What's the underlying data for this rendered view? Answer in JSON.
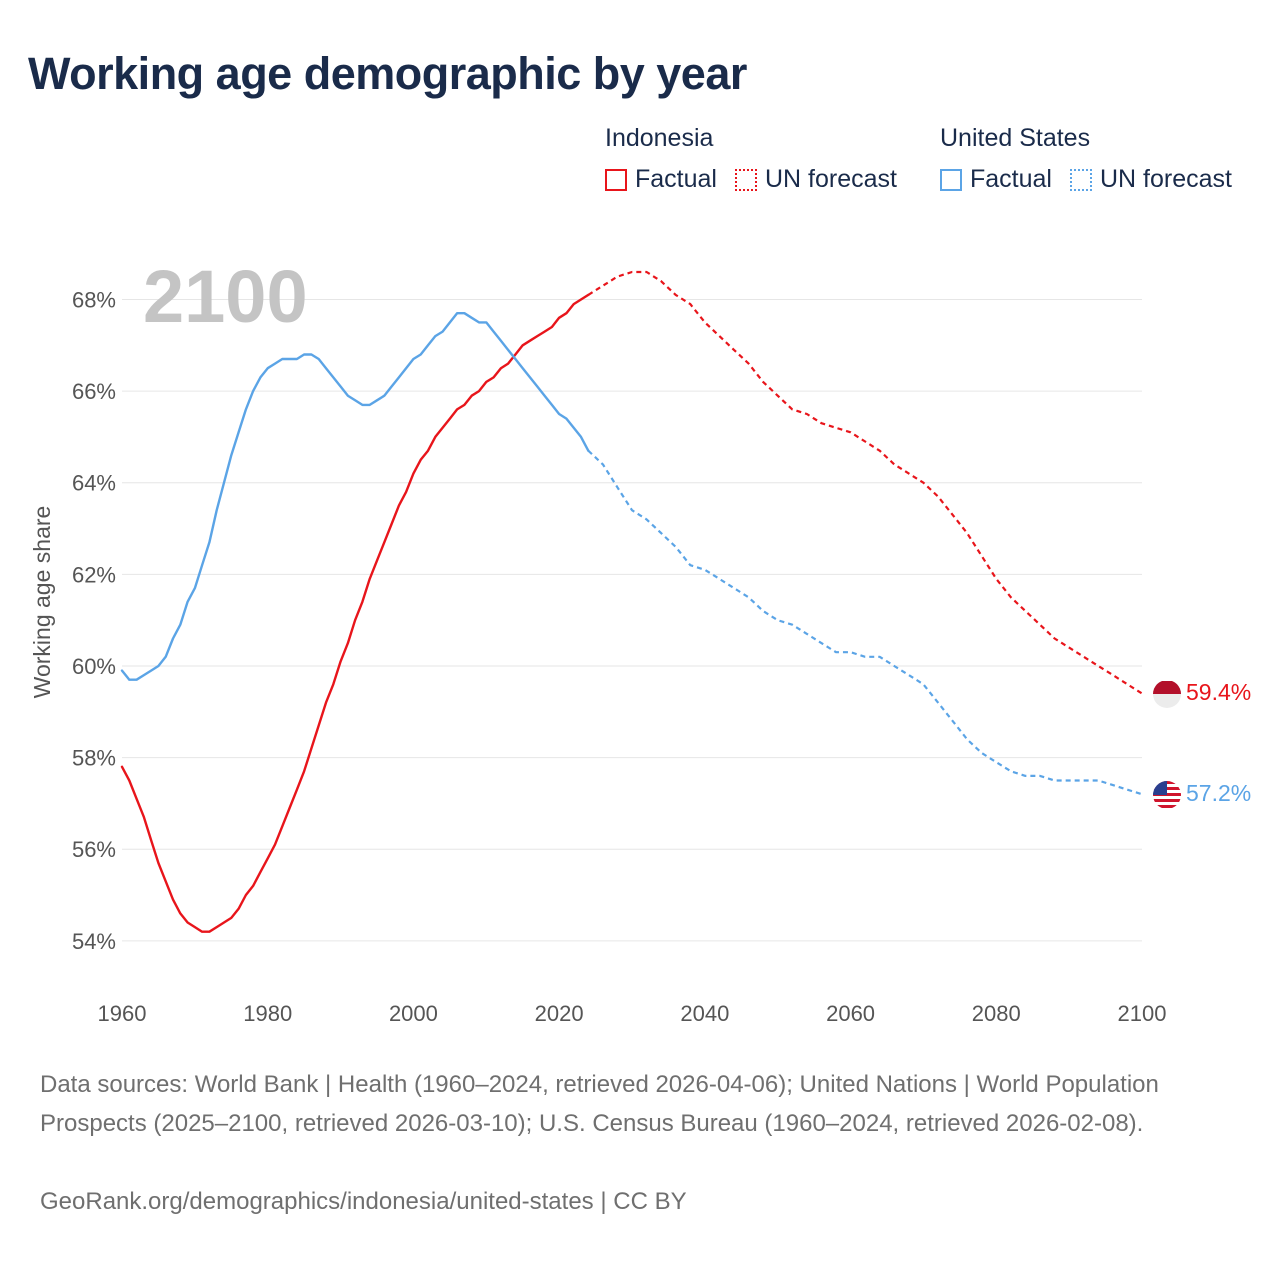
{
  "title": "Working age demographic by year",
  "legend": {
    "groups": [
      {
        "country": "Indonesia",
        "color": "#e8151b",
        "factual_label": "Factual",
        "forecast_label": "UN forecast"
      },
      {
        "country": "United States",
        "color": "#5ba4e6",
        "factual_label": "Factual",
        "forecast_label": "UN forecast"
      }
    ]
  },
  "year_watermark": "2100",
  "footer": {
    "sources": "Data sources: World Bank | Health (1960–2024, retrieved 2026-04-06); United Nations | World Population Prospects (2025–2100, retrieved 2026-03-10); U.S. Census Bureau (1960–2024, retrieved 2026-02-08).",
    "credit": "GeoRank.org/demographics/indonesia/united-states | CC BY"
  },
  "chart_data": {
    "type": "line",
    "title": "Working age demographic by year",
    "xlabel": "",
    "ylabel": "Working age share",
    "xlim": [
      1960,
      2100
    ],
    "ylim": [
      53.8,
      68.6
    ],
    "x_ticks": [
      1960,
      1980,
      2000,
      2020,
      2040,
      2060,
      2080,
      2100
    ],
    "y_ticks": [
      54,
      56,
      58,
      60,
      62,
      64,
      66,
      68
    ],
    "y_tick_labels": [
      "54%",
      "56%",
      "58%",
      "60%",
      "62%",
      "64%",
      "66%",
      "68%"
    ],
    "grid": true,
    "series": [
      {
        "name": "Indonesia",
        "color": "#e8151b",
        "end_label": "59.4%",
        "end_icon": "indonesia-flag-icon",
        "factual": {
          "x": [
            1960,
            1961,
            1962,
            1963,
            1964,
            1965,
            1966,
            1967,
            1968,
            1969,
            1970,
            1971,
            1972,
            1973,
            1974,
            1975,
            1976,
            1977,
            1978,
            1979,
            1980,
            1981,
            1982,
            1983,
            1984,
            1985,
            1986,
            1987,
            1988,
            1989,
            1990,
            1991,
            1992,
            1993,
            1994,
            1995,
            1996,
            1997,
            1998,
            1999,
            2000,
            2001,
            2002,
            2003,
            2004,
            2005,
            2006,
            2007,
            2008,
            2009,
            2010,
            2011,
            2012,
            2013,
            2014,
            2015,
            2016,
            2017,
            2018,
            2019,
            2020,
            2021,
            2022,
            2023,
            2024
          ],
          "y": [
            57.8,
            57.5,
            57.1,
            56.7,
            56.2,
            55.7,
            55.3,
            54.9,
            54.6,
            54.4,
            54.3,
            54.2,
            54.2,
            54.3,
            54.4,
            54.5,
            54.7,
            55.0,
            55.2,
            55.5,
            55.8,
            56.1,
            56.5,
            56.9,
            57.3,
            57.7,
            58.2,
            58.7,
            59.2,
            59.6,
            60.1,
            60.5,
            61.0,
            61.4,
            61.9,
            62.3,
            62.7,
            63.1,
            63.5,
            63.8,
            64.2,
            64.5,
            64.7,
            65.0,
            65.2,
            65.4,
            65.6,
            65.7,
            65.9,
            66.0,
            66.2,
            66.3,
            66.5,
            66.6,
            66.8,
            67.0,
            67.1,
            67.2,
            67.3,
            67.4,
            67.6,
            67.7,
            67.9,
            68.0,
            68.1
          ]
        },
        "forecast": {
          "x": [
            2024,
            2026,
            2028,
            2030,
            2032,
            2034,
            2036,
            2038,
            2040,
            2042,
            2044,
            2046,
            2048,
            2050,
            2052,
            2054,
            2056,
            2058,
            2060,
            2062,
            2064,
            2066,
            2068,
            2070,
            2072,
            2074,
            2076,
            2078,
            2080,
            2082,
            2084,
            2086,
            2088,
            2090,
            2092,
            2094,
            2096,
            2098,
            2100
          ],
          "y": [
            68.1,
            68.3,
            68.5,
            68.6,
            68.6,
            68.4,
            68.1,
            67.9,
            67.5,
            67.2,
            66.9,
            66.6,
            66.2,
            65.9,
            65.6,
            65.5,
            65.3,
            65.2,
            65.1,
            64.9,
            64.7,
            64.4,
            64.2,
            64.0,
            63.7,
            63.3,
            62.9,
            62.4,
            61.9,
            61.5,
            61.2,
            60.9,
            60.6,
            60.4,
            60.2,
            60.0,
            59.8,
            59.6,
            59.4
          ]
        }
      },
      {
        "name": "United States",
        "color": "#5ba4e6",
        "end_label": "57.2%",
        "end_icon": "united-states-flag-icon",
        "factual": {
          "x": [
            1960,
            1961,
            1962,
            1963,
            1964,
            1965,
            1966,
            1967,
            1968,
            1969,
            1970,
            1971,
            1972,
            1973,
            1974,
            1975,
            1976,
            1977,
            1978,
            1979,
            1980,
            1981,
            1982,
            1983,
            1984,
            1985,
            1986,
            1987,
            1988,
            1989,
            1990,
            1991,
            1992,
            1993,
            1994,
            1995,
            1996,
            1997,
            1998,
            1999,
            2000,
            2001,
            2002,
            2003,
            2004,
            2005,
            2006,
            2007,
            2008,
            2009,
            2010,
            2011,
            2012,
            2013,
            2014,
            2015,
            2016,
            2017,
            2018,
            2019,
            2020,
            2021,
            2022,
            2023,
            2024
          ],
          "y": [
            59.9,
            59.7,
            59.7,
            59.8,
            59.9,
            60.0,
            60.2,
            60.6,
            60.9,
            61.4,
            61.7,
            62.2,
            62.7,
            63.4,
            64.0,
            64.6,
            65.1,
            65.6,
            66.0,
            66.3,
            66.5,
            66.6,
            66.7,
            66.7,
            66.7,
            66.8,
            66.8,
            66.7,
            66.5,
            66.3,
            66.1,
            65.9,
            65.8,
            65.7,
            65.7,
            65.8,
            65.9,
            66.1,
            66.3,
            66.5,
            66.7,
            66.8,
            67.0,
            67.2,
            67.3,
            67.5,
            67.7,
            67.7,
            67.6,
            67.5,
            67.5,
            67.3,
            67.1,
            66.9,
            66.7,
            66.5,
            66.3,
            66.1,
            65.9,
            65.7,
            65.5,
            65.4,
            65.2,
            65.0,
            64.7
          ]
        },
        "forecast": {
          "x": [
            2024,
            2026,
            2028,
            2030,
            2032,
            2034,
            2036,
            2038,
            2040,
            2042,
            2044,
            2046,
            2048,
            2050,
            2052,
            2054,
            2056,
            2058,
            2060,
            2062,
            2064,
            2066,
            2068,
            2070,
            2072,
            2074,
            2076,
            2078,
            2080,
            2082,
            2084,
            2086,
            2088,
            2090,
            2092,
            2094,
            2096,
            2098,
            2100
          ],
          "y": [
            64.7,
            64.4,
            63.9,
            63.4,
            63.2,
            62.9,
            62.6,
            62.2,
            62.1,
            61.9,
            61.7,
            61.5,
            61.2,
            61.0,
            60.9,
            60.7,
            60.5,
            60.3,
            60.3,
            60.2,
            60.2,
            60.0,
            59.8,
            59.6,
            59.2,
            58.8,
            58.4,
            58.1,
            57.9,
            57.7,
            57.6,
            57.6,
            57.5,
            57.5,
            57.5,
            57.5,
            57.4,
            57.3,
            57.2
          ]
        }
      }
    ]
  }
}
